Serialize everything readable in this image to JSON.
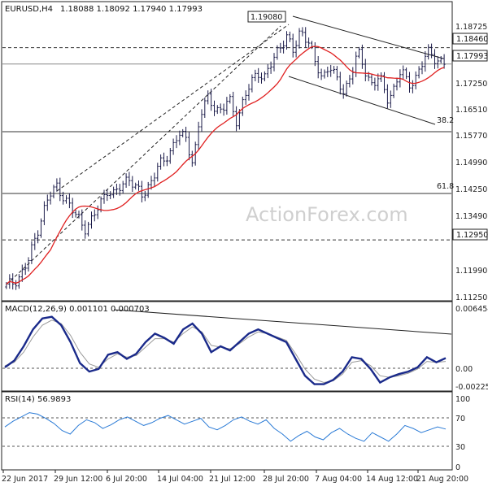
{
  "chart_data": [
    {
      "type": "candlestick",
      "title": "EURUSD,H4",
      "ohlc_label": "1.18088 1.18092 1.17940 1.17993",
      "watermark": "ActionForex.com",
      "price_axis": {
        "range": [
          1.1125,
          1.195
        ],
        "ticks": [
          "1.18725",
          "1.17993",
          "1.17250",
          "1.16510",
          "1.15770",
          "1.14990",
          "1.14250",
          "1.13490",
          "1.12950",
          "1.11990",
          "1.11250"
        ],
        "boxed": [
          "1.18460",
          "1.17993",
          "1.12950"
        ]
      },
      "horizontal_levels": [
        {
          "value": 1.1846,
          "style": "dashed",
          "label": "1.18460"
        },
        {
          "value": 1.1799,
          "style": "solid",
          "label": "1.17993"
        },
        {
          "value": 1.1605,
          "style": "solid",
          "label": "38.2"
        },
        {
          "value": 1.1428,
          "style": "solid",
          "label": "61.8"
        },
        {
          "value": 1.1295,
          "style": "dashed",
          "label": "1.12950"
        }
      ],
      "high_annotation": "1.19080",
      "moving_average_color": "#e02020",
      "candle_color": "#1c1c4a",
      "close_path": [
        1.116,
        1.1175,
        1.1195,
        1.123,
        1.13,
        1.137,
        1.142,
        1.145,
        1.142,
        1.138,
        1.136,
        1.133,
        1.135,
        1.14,
        1.144,
        1.142,
        1.145,
        1.148,
        1.144,
        1.142,
        1.146,
        1.15,
        1.152,
        1.156,
        1.16,
        1.158,
        1.152,
        1.165,
        1.17,
        1.168,
        1.166,
        1.17,
        1.164,
        1.169,
        1.174,
        1.178,
        1.176,
        1.18,
        1.185,
        1.188,
        1.183,
        1.19,
        1.187,
        1.18,
        1.176,
        1.18,
        1.175,
        1.172,
        1.177,
        1.183,
        1.178,
        1.174,
        1.176,
        1.17,
        1.173,
        1.178,
        1.174,
        1.176,
        1.18,
        1.184,
        1.181,
        1.1799
      ]
    },
    {
      "type": "line",
      "title": "MACD(12,26,9) 0.001101 0.000703",
      "range": [
        -0.00252,
        0.00645
      ],
      "ticks": [
        "0.006454",
        "0.00",
        "-0.002252"
      ],
      "series": [
        {
          "values": [
            0.0,
            0.0008,
            0.0025,
            0.0045,
            0.0058,
            0.006,
            0.005,
            0.003,
            0.0005,
            -0.0005,
            -0.0002,
            0.0015,
            0.0018,
            0.001,
            0.0016,
            0.003,
            0.004,
            0.0035,
            0.0028,
            0.0045,
            0.0052,
            0.004,
            0.0018,
            0.0025,
            0.002,
            0.003,
            0.004,
            0.0045,
            0.004,
            0.0035,
            0.003,
            0.001,
            -0.001,
            -0.002,
            -0.002,
            -0.0015,
            -0.0005,
            0.0012,
            0.001,
            -0.0002,
            -0.0018,
            -0.0012,
            -0.0008,
            -0.0005,
            0.0,
            0.0012,
            0.0006,
            0.0011
          ]
        },
        {
          "values": [
            0.0002,
            0.0006,
            0.0018,
            0.0036,
            0.005,
            0.0056,
            0.0052,
            0.0038,
            0.0018,
            0.0004,
            0.0,
            0.001,
            0.0016,
            0.0012,
            0.0014,
            0.0024,
            0.0034,
            0.0034,
            0.003,
            0.004,
            0.0048,
            0.0042,
            0.0026,
            0.0024,
            0.0022,
            0.0028,
            0.0036,
            0.0042,
            0.004,
            0.0036,
            0.0032,
            0.0016,
            -0.0002,
            -0.0014,
            -0.0018,
            -0.0016,
            -0.0008,
            0.0006,
            0.0008,
            0.0002,
            -0.001,
            -0.0012,
            -0.001,
            -0.0007,
            -0.0002,
            0.0007,
            0.0006,
            0.0007
          ]
        }
      ]
    },
    {
      "type": "line",
      "title": "RSI(14) 56.9893",
      "range": [
        0,
        100
      ],
      "ticks": [
        "100",
        "70",
        "30",
        "0"
      ],
      "levels": [
        70,
        30
      ],
      "series": [
        {
          "values": [
            60,
            68,
            74,
            80,
            78,
            72,
            65,
            55,
            50,
            62,
            70,
            66,
            58,
            63,
            70,
            74,
            68,
            62,
            66,
            72,
            76,
            70,
            64,
            68,
            72,
            60,
            56,
            62,
            70,
            74,
            68,
            64,
            70,
            58,
            50,
            40,
            48,
            54,
            46,
            42,
            52,
            58,
            50,
            44,
            40,
            52,
            46,
            40,
            50,
            62,
            58,
            52,
            56,
            60,
            57
          ]
        }
      ],
      "x_ticks": [
        "22 Jun 2017",
        "29 Jun 12:00",
        "6 Jul 20:00",
        "14 Jul 04:00",
        "21 Jul 12:00",
        "28 Jul 20:00",
        "7 Aug 04:00",
        "14 Aug 12:00",
        "21 Aug 20:00"
      ]
    }
  ]
}
